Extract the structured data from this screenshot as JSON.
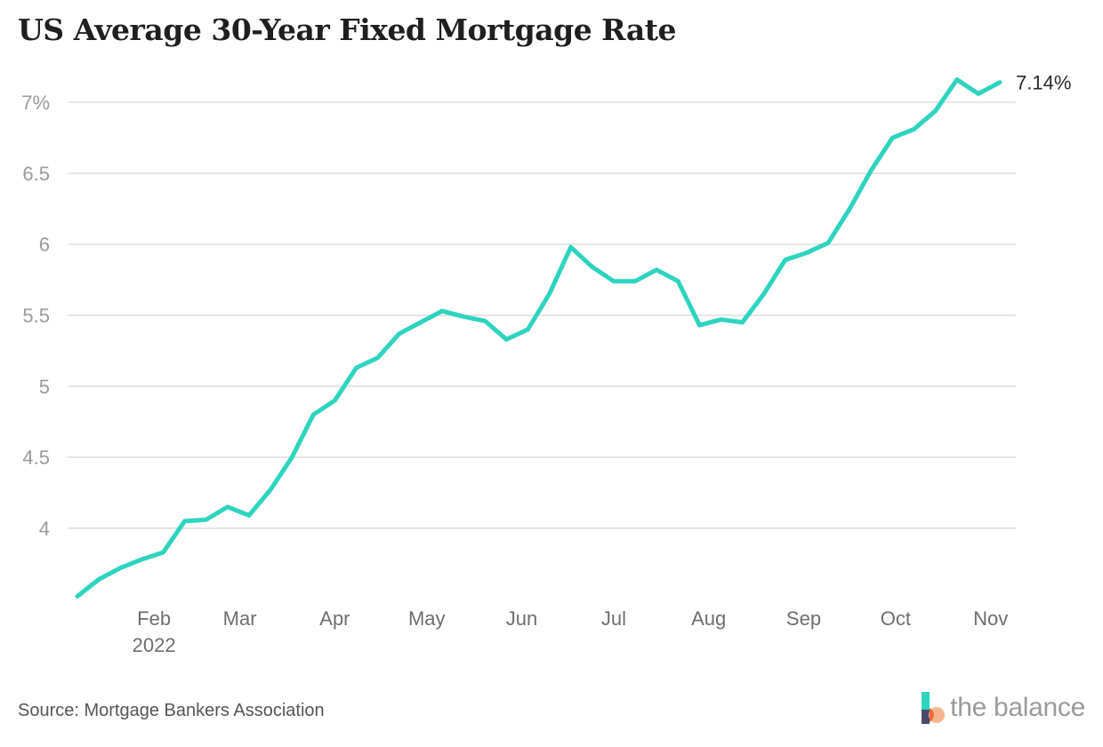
{
  "title": "US Average 30-Year Fixed Mortgage Rate",
  "source": "Source: Mortgage Bankers Association",
  "brand": "the balance",
  "colors": {
    "line": "#2dd4bf",
    "grid": "#dddddd",
    "tick": "#9a9a9a",
    "xtick": "#6e6e6e",
    "title": "#1f1f1f"
  },
  "chart_data": {
    "type": "line",
    "title": "US Average 30-Year Fixed Mortgage Rate",
    "xlabel": "",
    "ylabel": "",
    "ylim": [
      3.45,
      7.3
    ],
    "yticks": [
      4,
      4.5,
      5,
      5.5,
      6,
      6.5,
      7
    ],
    "ytick_labels": [
      "4",
      "4.5",
      "5",
      "5.5",
      "6",
      "6.5",
      "7%"
    ],
    "grid": true,
    "xlim": [
      "2022-01-07",
      "2022-11-04"
    ],
    "xticks": [
      {
        "date": "2022-02-01",
        "label": "Feb",
        "sublabel": "2022"
      },
      {
        "date": "2022-03-01",
        "label": "Mar"
      },
      {
        "date": "2022-04-01",
        "label": "Apr"
      },
      {
        "date": "2022-05-01",
        "label": "May"
      },
      {
        "date": "2022-06-01",
        "label": "Jun"
      },
      {
        "date": "2022-07-01",
        "label": "Jul"
      },
      {
        "date": "2022-08-01",
        "label": "Aug"
      },
      {
        "date": "2022-09-01",
        "label": "Sep"
      },
      {
        "date": "2022-10-01",
        "label": "Oct"
      },
      {
        "date": "2022-11-01",
        "label": "Nov"
      }
    ],
    "end_label": "7.14%",
    "series": [
      {
        "x": [
          "2022-01-07",
          "2022-01-14",
          "2022-01-21",
          "2022-01-28",
          "2022-02-04",
          "2022-02-11",
          "2022-02-18",
          "2022-02-25",
          "2022-03-04",
          "2022-03-11",
          "2022-03-18",
          "2022-03-25",
          "2022-04-01",
          "2022-04-08",
          "2022-04-15",
          "2022-04-22",
          "2022-04-29",
          "2022-05-06",
          "2022-05-13",
          "2022-05-20",
          "2022-05-27",
          "2022-06-03",
          "2022-06-10",
          "2022-06-17",
          "2022-06-24",
          "2022-07-01",
          "2022-07-08",
          "2022-07-15",
          "2022-07-22",
          "2022-07-29",
          "2022-08-05",
          "2022-08-12",
          "2022-08-19",
          "2022-08-26",
          "2022-09-02",
          "2022-09-09",
          "2022-09-16",
          "2022-09-23",
          "2022-09-30",
          "2022-10-07",
          "2022-10-14",
          "2022-10-21",
          "2022-10-28",
          "2022-11-04"
        ],
        "values": [
          3.52,
          3.64,
          3.72,
          3.78,
          3.83,
          4.05,
          4.06,
          4.15,
          4.09,
          4.27,
          4.5,
          4.8,
          4.9,
          5.13,
          5.2,
          5.37,
          5.45,
          5.53,
          5.49,
          5.46,
          5.33,
          5.4,
          5.65,
          5.98,
          5.84,
          5.74,
          5.74,
          5.82,
          5.74,
          5.43,
          5.47,
          5.45,
          5.65,
          5.89,
          5.94,
          6.01,
          6.25,
          6.52,
          6.75,
          6.81,
          6.94,
          7.16,
          7.06,
          7.14
        ]
      }
    ]
  }
}
